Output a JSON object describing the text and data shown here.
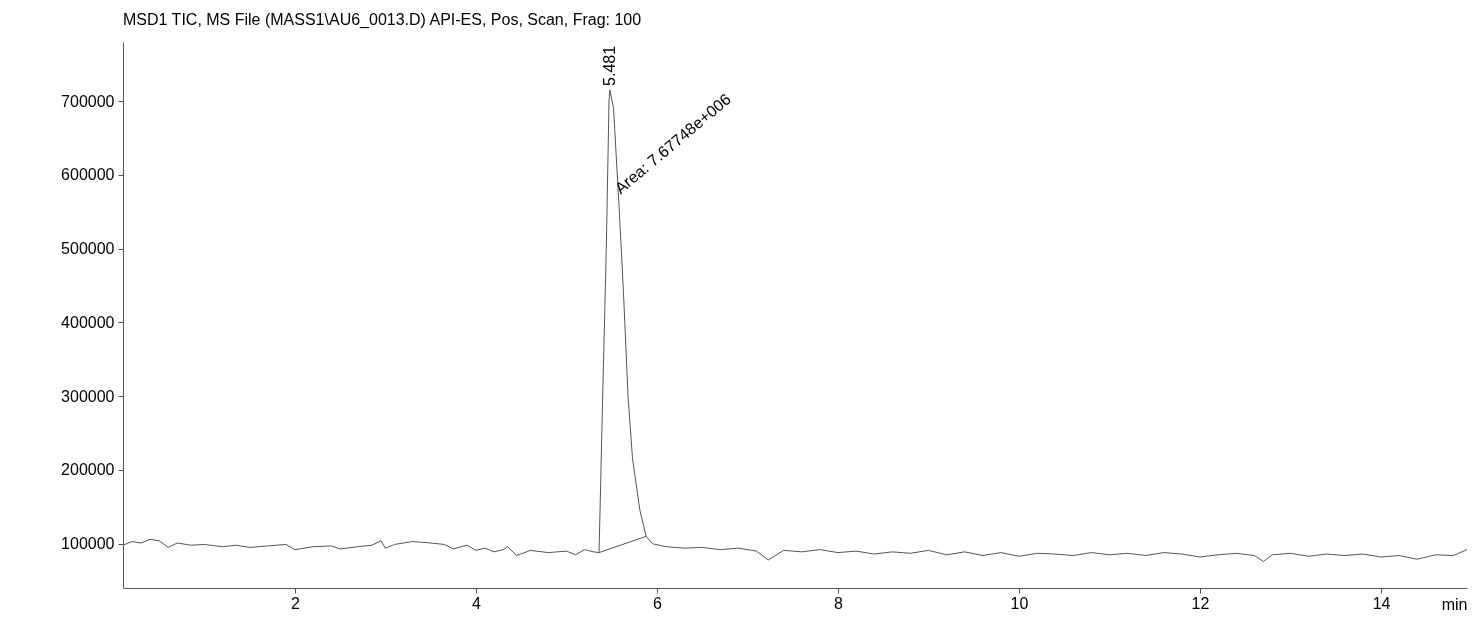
{
  "chart_data": {
    "type": "line",
    "title": "MSD1 TIC, MS File (MASS1\\AU6_0013.D)    API-ES, Pos, Scan, Frag: 100",
    "xlabel": "min",
    "xlim": [
      0.1,
      14.95
    ],
    "xticks": [
      2,
      4,
      6,
      8,
      10,
      12,
      14
    ],
    "ylim": [
      40000,
      780000
    ],
    "yticks": [
      100000,
      200000,
      300000,
      400000,
      500000,
      600000,
      700000
    ],
    "grid": false,
    "line_style": "solid",
    "annotations": [
      {
        "text": "5.481",
        "x": 5.481,
        "y": 715000
      },
      {
        "text": "Area: 7.67748e+006",
        "x": 5.62,
        "y": 570000
      }
    ],
    "series": [
      {
        "color": "#555555",
        "x": [
          0.1,
          0.2,
          0.3,
          0.4,
          0.5,
          0.6,
          0.7,
          0.85,
          1.0,
          1.2,
          1.35,
          1.5,
          1.7,
          1.9,
          2.0,
          2.2,
          2.4,
          2.5,
          2.7,
          2.85,
          2.95,
          3.0,
          3.1,
          3.3,
          3.5,
          3.65,
          3.75,
          3.9,
          4.0,
          4.1,
          4.2,
          4.3,
          4.35,
          4.45,
          4.6,
          4.8,
          5.0,
          5.1,
          5.2,
          5.3,
          5.36,
          5.4,
          5.44,
          5.47,
          5.48,
          5.52,
          5.58,
          5.63,
          5.68,
          5.73,
          5.81,
          5.88,
          5.95,
          6.1,
          6.3,
          6.5,
          6.7,
          6.9,
          7.1,
          7.23,
          7.4,
          7.6,
          7.8,
          8.0,
          8.2,
          8.4,
          8.6,
          8.8,
          9.0,
          9.2,
          9.4,
          9.6,
          9.8,
          10.0,
          10.2,
          10.4,
          10.6,
          10.8,
          11.0,
          11.2,
          11.4,
          11.6,
          11.8,
          12.0,
          12.2,
          12.4,
          12.6,
          12.7,
          12.8,
          13.0,
          13.2,
          13.4,
          13.6,
          13.8,
          14.0,
          14.2,
          14.4,
          14.6,
          14.8,
          14.95
        ],
        "values": [
          98000,
          103000,
          101000,
          106000,
          104000,
          95000,
          101000,
          98000,
          99000,
          96000,
          98000,
          95000,
          97000,
          99000,
          92000,
          96000,
          97000,
          93000,
          96000,
          98000,
          104000,
          94000,
          99000,
          103000,
          101000,
          99000,
          93000,
          98000,
          91000,
          94000,
          89000,
          92000,
          96000,
          84000,
          91000,
          88000,
          90000,
          85000,
          92000,
          89000,
          88000,
          300000,
          500000,
          700000,
          715000,
          690000,
          560000,
          440000,
          300000,
          215000,
          146000,
          110000,
          100000,
          96000,
          94000,
          95000,
          92000,
          94000,
          90000,
          78000,
          91000,
          89000,
          92000,
          88000,
          90000,
          86000,
          89000,
          87000,
          91000,
          85000,
          89000,
          84000,
          88000,
          83000,
          87000,
          86000,
          84000,
          88000,
          85000,
          87000,
          84000,
          88000,
          86000,
          82000,
          85000,
          87000,
          84000,
          76000,
          85000,
          87000,
          83000,
          86000,
          84000,
          86000,
          82000,
          84000,
          79000,
          85000,
          84000,
          92000
        ]
      },
      {
        "color": "#555555",
        "x": [
          5.36,
          5.88
        ],
        "values": [
          88000,
          110000
        ]
      }
    ]
  }
}
